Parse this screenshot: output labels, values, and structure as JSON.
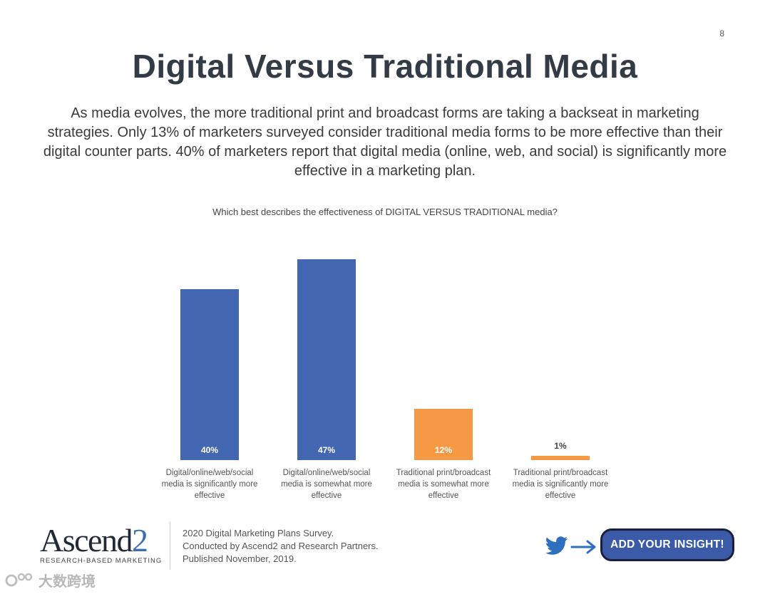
{
  "page_number": "8",
  "title": "Digital Versus Traditional Media",
  "intro": "As media evolves, the more traditional print and broadcast forms are taking a backseat in marketing strategies. Only 13% of marketers surveyed consider traditional media forms to be more effective than their digital counter parts. 40% of marketers report that digital media (online, web, and social) is significantly more effective in a marketing plan.",
  "chart_data": {
    "type": "bar",
    "title": "Which best describes the effectiveness of DIGITAL VERSUS TRADITIONAL media?",
    "categories": [
      [
        "Digital/online/web/social",
        "media is significantly more",
        "effective"
      ],
      [
        "Digital/online/web/social",
        "media is somewhat more",
        "effective"
      ],
      [
        "Traditional print/broadcast",
        "media is somewhat more",
        "effective"
      ],
      [
        "Traditional print/broadcast",
        "media is significantly more",
        "effective"
      ]
    ],
    "values": [
      40,
      47,
      12,
      1
    ],
    "value_labels": [
      "40%",
      "47%",
      "12%",
      "1%"
    ],
    "colors": [
      "#4367b0",
      "#4367b0",
      "#f59a44",
      "#f59a44"
    ],
    "ylim": [
      0,
      50
    ],
    "grid": false,
    "legend": "none"
  },
  "footer": {
    "logo_word": "Ascend",
    "logo_digit": "2",
    "logo_tagline": "RESEARCH-BASED MARKETING",
    "credit_lines": [
      "2020 Digital Marketing Plans Survey.",
      "Conducted  by Ascend2 and Research Partners.",
      "Published November, 2019."
    ],
    "icon": "twitter-bird-icon",
    "cta_label": "ADD YOUR INSIGHT!"
  },
  "watermark": {
    "icon": "brand-mark-icon",
    "text": "大数跨境"
  }
}
